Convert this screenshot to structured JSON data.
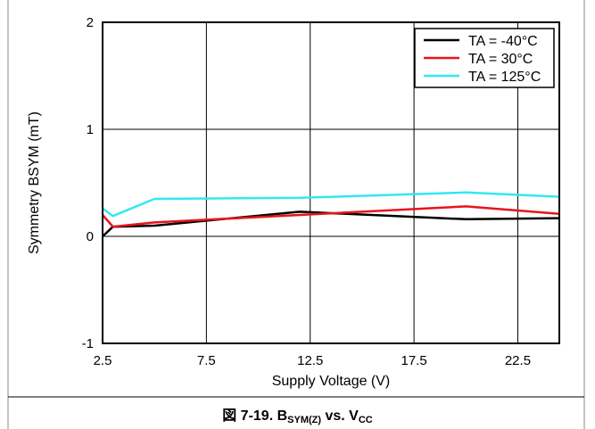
{
  "chart_data": {
    "type": "line",
    "xlabel": "Supply Voltage (V)",
    "ylabel": "Symmetry BSYM (mT)",
    "xlim": [
      2.5,
      24.5
    ],
    "ylim": [
      -1,
      2
    ],
    "xticks": [
      2.5,
      7.5,
      12.5,
      17.5,
      22.5
    ],
    "xtick_labels": [
      "2.5",
      "7.5",
      "12.5",
      "17.5",
      "22.5"
    ],
    "yticks": [
      -1,
      0,
      1,
      2
    ],
    "ytick_labels": [
      "-1",
      "0",
      "1",
      "2"
    ],
    "x_gridlines": [
      2.5,
      7.5,
      12.5,
      17.5,
      22.5
    ],
    "y_gridlines": [
      -1,
      0,
      1,
      2
    ],
    "grid": true,
    "legend_position": "top-right",
    "series": [
      {
        "name": "TA = -40°C",
        "color": "#000000",
        "x": [
          2.5,
          3,
          5,
          12,
          20,
          24.5
        ],
        "y": [
          0.0,
          0.09,
          0.1,
          0.23,
          0.16,
          0.17
        ]
      },
      {
        "name": "TA = 30°C",
        "color": "#e8141c",
        "x": [
          2.5,
          3,
          5,
          12,
          20,
          24.5
        ],
        "y": [
          0.2,
          0.09,
          0.13,
          0.2,
          0.28,
          0.21
        ]
      },
      {
        "name": "TA = 125°C",
        "color": "#33e8f0",
        "x": [
          2.5,
          3,
          5,
          12,
          20,
          24.5
        ],
        "y": [
          0.26,
          0.19,
          0.35,
          0.36,
          0.41,
          0.37
        ]
      }
    ]
  },
  "caption": {
    "prefix": "図 7-19. B",
    "sub1": "SYM(Z)",
    "mid": " vs. V",
    "sub2": "CC"
  }
}
